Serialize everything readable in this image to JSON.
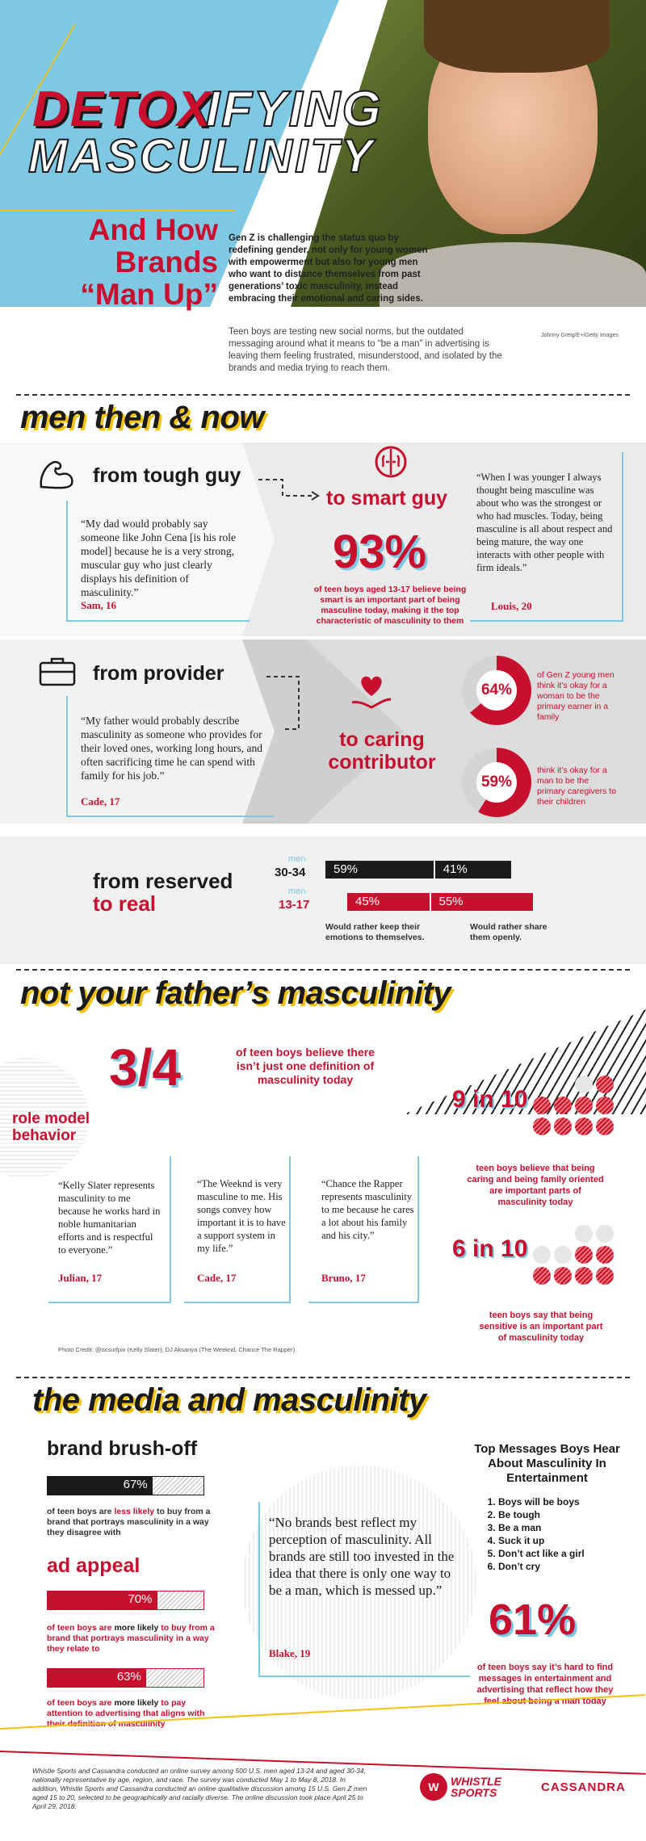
{
  "header": {
    "title_detox": "DETOX",
    "title_ifying": "IFYING",
    "title_masculinity": "MASCULINITY",
    "subtitle_line1": "And How",
    "subtitle_line2": "Brands",
    "subtitle_line3": "“Man Up”",
    "intro_bold": "Gen Z is challenging the status quo by redefining gender, not only for young women with empowerment but also for young men who want to distance themselves from past generations’ toxic masculinity, instead embracing their emotional and caring sides.",
    "intro_body": "Teen boys are testing new social norms, but the outdated messaging around what it means to “be a man” in advertising is leaving them feeling frustrated, misunderstood, and isolated by the brands and media trying to reach them.",
    "photo_credit": "Johnny Greig/E+/Getty Images"
  },
  "section1": {
    "title": "men then & now",
    "tough": {
      "from_label": "from tough guy",
      "to_label": "to smart guy",
      "quote_left": "“My dad would probably say someone like John Cena [is his role model] because he is a very strong, muscular guy who just clearly displays his definition of masculinity.”",
      "attr_left": "Sam, 16",
      "stat": "93%",
      "stat_caption": "of teen boys aged 13-17 believe being smart is an important part of being masculine today, making it the top characteristic of masculinity to them",
      "quote_right": "“When I was younger I always thought being masculine was about who was the strongest or who had muscles. Today, being masculine is all about respect and being mature, the way one interacts with other people with firm ideals.”",
      "attr_right": "Louis, 20"
    },
    "provider": {
      "from_label": "from provider",
      "to_label_1": "to caring",
      "to_label_2": "contributor",
      "quote": "“My father would probably describe masculinity as someone who provides for their loved ones, working long hours, and often sacrificing time he can spend with family for his job.”",
      "attr": "Cade, 17",
      "donut1_value": "64%",
      "donut1_fraction": 0.64,
      "donut1_caption": "of Gen Z young men think it’s okay for a woman to be the primary earner in a family",
      "donut2_value": "59%",
      "donut2_fraction": 0.59,
      "donut2_caption": "think it’s okay for a man to be the primary caregivers to their children"
    },
    "reserved": {
      "label_1": "from reserved",
      "label_2": "to real",
      "row1_men": "men",
      "row1_age": "30-34",
      "row1_keep": "59%",
      "row1_keep_value": 59,
      "row1_share": "41%",
      "row1_share_value": 41,
      "row2_men": "men",
      "row2_age": "13-17",
      "row2_keep": "45%",
      "row2_keep_value": 45,
      "row2_share": "55%",
      "row2_share_value": 55,
      "legend_keep": "Would rather keep their emotions to themselves.",
      "legend_share": "Would rather share them openly."
    }
  },
  "section2": {
    "title": "not your father’s masculinity",
    "stat": "3/4",
    "stat_caption": "of teen boys believe there isn’t just one definition of masculinity today",
    "role_model_label_1": "role model",
    "role_model_label_2": "behavior",
    "quote1": "“Kelly Slater represents masculinity to me because he works hard in noble humanitarian efforts and is respectful to everyone.”",
    "attr1": "Julian, 17",
    "quote2": "“The Weeknd is very masculine to me. His songs convey how important it is to have a support system in my life.”",
    "attr2": "Cade, 17",
    "quote3": "“Chance the Rapper represents masculinity to me because he cares a lot about his family and his city.”",
    "attr3": "Bruno, 17",
    "stat9": "9 in 10",
    "stat9_filled": 9,
    "stat9_caption": "teen boys believe that being caring and being family oriented are important parts of masculinity today",
    "stat6": "6 in 10",
    "stat6_filled": 6,
    "stat6_caption": "teen boys say that being sensitive is an important part of masculinity today",
    "photo_credit": "Photo Credit: @ocsurfpix (Kelly Slater); DJ Aksanya (The Weeknd, Chance The Rapper)."
  },
  "section3": {
    "title": "the media and masculinity",
    "brush_title": "brand brush-off",
    "brush_value": "67%",
    "brush_fraction": 0.67,
    "brush_caption_pre": "of teen boys are ",
    "brush_caption_hl": "less likely",
    "brush_caption_post": " to buy from a brand that portrays masculinity in a way they disagree with",
    "appeal_title": "ad appeal",
    "appeal1_value": "70%",
    "appeal1_fraction": 0.7,
    "appeal1_caption_pre": "of teen boys are ",
    "appeal1_caption_hl": "more likely",
    "appeal1_caption_post": " to buy from a brand that portrays masculinity in a way they relate to",
    "appeal2_value": "63%",
    "appeal2_fraction": 0.63,
    "appeal2_caption_pre": "of teen boys are ",
    "appeal2_caption_hl": "more likely",
    "appeal2_caption_post": " to pay attention to advertising that aligns with their definition of masculinity",
    "quote": "“No brands best reflect my perception of masculinity. All brands are still too invested in the idea that there is only one way to be a man, which is messed up.”",
    "attr": "Blake, 19",
    "messages_title": "Top Messages Boys Hear About Masculinity In Entertainment",
    "messages": [
      "Boys will be boys",
      "Be tough",
      "Be a man",
      "Suck it up",
      "Don’t act like a girl",
      "Don’t cry"
    ],
    "stat": "61%",
    "stat_caption": "of teen boys say it’s hard to find messages in entertainment and advertising that reflect how they feel about being a man today"
  },
  "footer": {
    "methodology": "Whistle Sports and Cassandra conducted an online survey among 500 U.S. men aged 13-24 and aged 30-34, nationally representative by age, region, and race. The survey was conducted May 1 to May 8, 2018. In addition, Whistle Sports and Cassandra conducted an online qualitative discussion among 15 U.S. Gen Z men aged 15 to 20, selected to be geographically and racially diverse. The online discussion took place April 25 to April 29, 2018.",
    "logo1": "WHISTLE SPORTS",
    "logo2": "CASSANDRA"
  },
  "colors": {
    "accent": "#c8102e",
    "yellow": "#f4c20d",
    "cyan": "#7ec8e3",
    "dark": "#1a1a1a",
    "gray": "#e8e8e8"
  }
}
